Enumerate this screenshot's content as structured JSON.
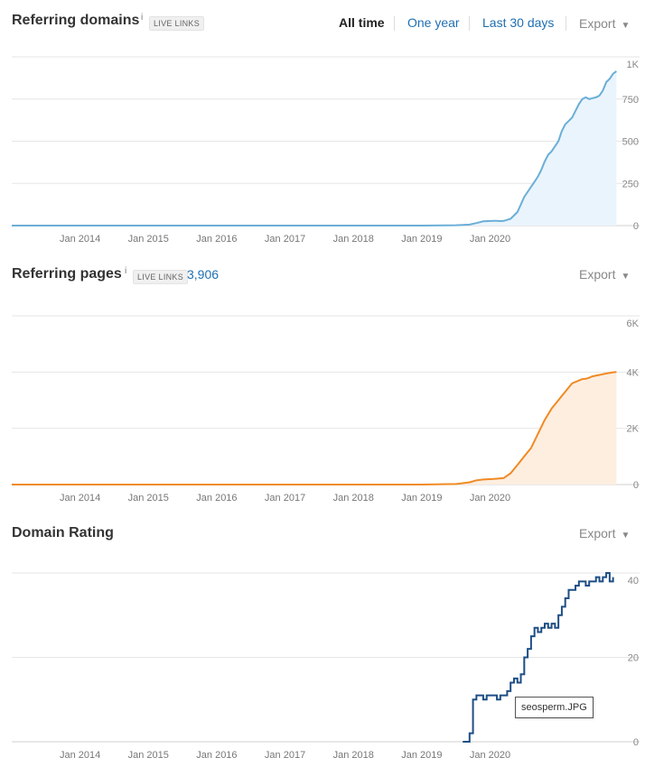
{
  "x_labels": [
    "Jan 2014",
    "Jan 2015",
    "Jan 2016",
    "Jan 2017",
    "Jan 2018",
    "Jan 2019",
    "Jan 2020"
  ],
  "range_options": {
    "all_time": "All time",
    "one_year": "One year",
    "last_30": "Last 30 days"
  },
  "export_label": "Export",
  "info_mark": "i",
  "live_links_badge": "LIVE LINKS",
  "tooltip": "seosperm.JPG",
  "colors": {
    "domains": "#6baed6",
    "domains_fill": "#eaf4fc",
    "pages": "#f08a24",
    "pages_fill": "#fdeee0",
    "dr": "#1f4e85",
    "grid": "#e6e6e6"
  },
  "chart_data": [
    {
      "id": "domains",
      "type": "area",
      "title": "Referring domains",
      "y_ticks": [
        "1K",
        "750",
        "500",
        "250",
        "0"
      ],
      "ylim": [
        0,
        1000
      ],
      "x": [
        2013.0,
        2019.0,
        2019.5,
        2019.7,
        2019.8,
        2019.9,
        2020.05,
        2020.1,
        2020.15,
        2020.2,
        2020.3,
        2020.4,
        2020.5,
        2020.6,
        2020.65,
        2020.7,
        2020.75,
        2020.8,
        2020.85,
        2020.9,
        2020.95,
        2021.0,
        2021.05,
        2021.1,
        2021.2,
        2021.3,
        2021.35,
        2021.4,
        2021.45,
        2021.5,
        2021.55,
        2021.6,
        2021.65,
        2021.7,
        2021.75,
        2021.8,
        2021.85
      ],
      "y": [
        0,
        0,
        2,
        6,
        15,
        25,
        28,
        28,
        27,
        28,
        40,
        80,
        170,
        230,
        260,
        290,
        330,
        380,
        420,
        440,
        470,
        500,
        560,
        600,
        640,
        720,
        750,
        760,
        750,
        755,
        760,
        770,
        800,
        850,
        870,
        900,
        915
      ]
    },
    {
      "id": "pages",
      "type": "area",
      "title": "Referring pages",
      "count": "3,906",
      "y_ticks": [
        "6K",
        "4K",
        "2K",
        "0"
      ],
      "ylim": [
        0,
        6000
      ],
      "x": [
        2013.0,
        2019.0,
        2019.5,
        2019.7,
        2019.8,
        2019.9,
        2020.05,
        2020.1,
        2020.2,
        2020.3,
        2020.4,
        2020.5,
        2020.6,
        2020.7,
        2020.8,
        2020.9,
        2021.0,
        2021.1,
        2021.2,
        2021.3,
        2021.35,
        2021.4,
        2021.45,
        2021.5,
        2021.6,
        2021.7,
        2021.8,
        2021.85
      ],
      "y": [
        0,
        0,
        20,
        80,
        150,
        180,
        200,
        210,
        230,
        400,
        700,
        1000,
        1300,
        1800,
        2300,
        2700,
        3000,
        3300,
        3600,
        3700,
        3750,
        3760,
        3800,
        3850,
        3900,
        3950,
        3990,
        4000
      ]
    },
    {
      "id": "dr",
      "type": "line",
      "title": "Domain Rating",
      "y_ticks": [
        "40",
        "20",
        "0"
      ],
      "ylim": [
        0,
        40
      ],
      "x": [
        2019.6,
        2019.65,
        2019.7,
        2019.75,
        2019.8,
        2019.85,
        2019.9,
        2019.95,
        2020.0,
        2020.1,
        2020.15,
        2020.2,
        2020.25,
        2020.3,
        2020.35,
        2020.4,
        2020.45,
        2020.5,
        2020.55,
        2020.6,
        2020.65,
        2020.7,
        2020.75,
        2020.8,
        2020.85,
        2020.9,
        2020.95,
        2021.0,
        2021.05,
        2021.1,
        2021.15,
        2021.2,
        2021.25,
        2021.3,
        2021.35,
        2021.4,
        2021.45,
        2021.5,
        2021.55,
        2021.6,
        2021.65,
        2021.7,
        2021.75,
        2021.8
      ],
      "y": [
        0,
        0,
        2,
        10,
        11,
        11,
        10,
        11,
        11,
        10,
        11,
        11,
        12,
        14,
        15,
        14,
        16,
        20,
        22,
        25,
        27,
        26,
        27,
        28,
        27,
        28,
        27,
        30,
        32,
        34,
        36,
        36,
        37,
        38,
        38,
        37,
        38,
        38,
        39,
        38,
        39,
        40,
        38,
        39
      ]
    }
  ]
}
